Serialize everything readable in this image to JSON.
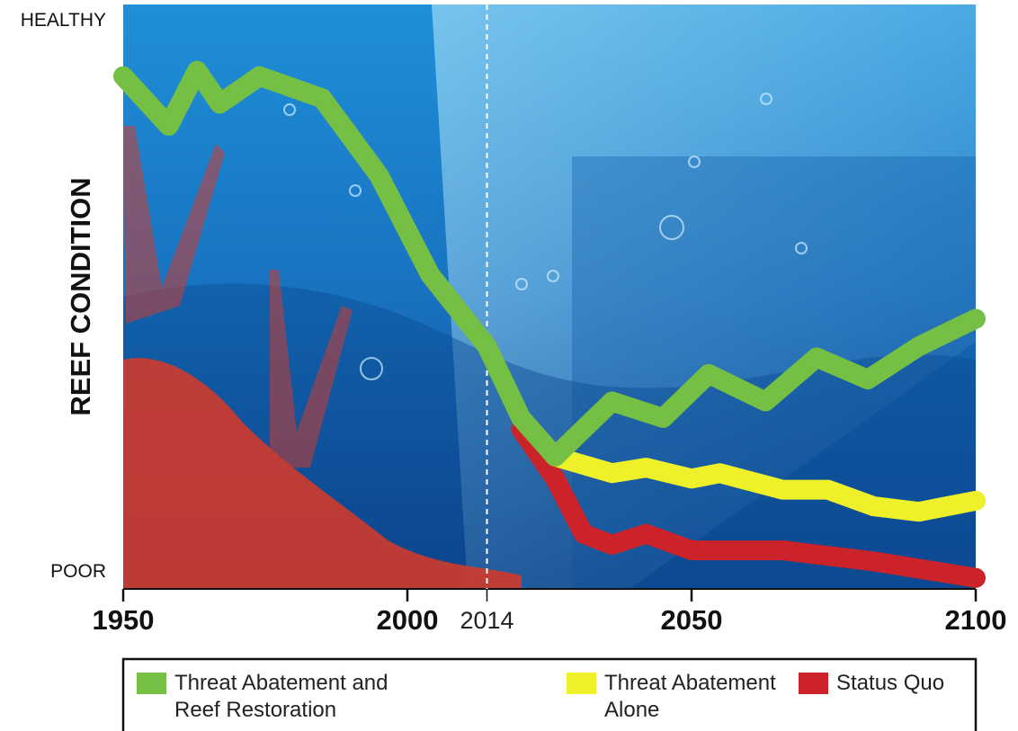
{
  "chart_data": {
    "type": "line",
    "y_label": "REEF CONDITION",
    "ylim": [
      -3,
      103
    ],
    "yticks": [
      {
        "value": 0,
        "label": "POOR"
      },
      {
        "value": 100,
        "label": "HEALTHY"
      }
    ],
    "xlim": [
      1950,
      2100
    ],
    "xticks": [
      1950,
      2000,
      2050,
      2100
    ],
    "reference_x": 2014,
    "series": [
      {
        "name": "Status Quo",
        "color": "#cc2229",
        "x": [
          2020,
          2026,
          2031,
          2036,
          2042,
          2050,
          2066,
          2082,
          2100
        ],
        "values": [
          26,
          17,
          7,
          5,
          7,
          4,
          4,
          2,
          -1
        ]
      },
      {
        "name": "Threat Abatement Alone",
        "color": "#eef02a",
        "x": [
          2026,
          2036,
          2042,
          2050,
          2055,
          2066,
          2074,
          2082,
          2090,
          2100
        ],
        "values": [
          21,
          18,
          19,
          17,
          18,
          15,
          15,
          12,
          11,
          13
        ]
      },
      {
        "name": "Threat Abatement and Reef Restoration",
        "color": "#74bf44",
        "x": [
          1950,
          1958,
          1963,
          1967,
          1974,
          1985,
          1995,
          2004,
          2014,
          2020,
          2026,
          2036,
          2045,
          2053,
          2063,
          2072,
          2081,
          2090,
          2100
        ],
        "values": [
          90,
          81,
          91,
          85,
          90,
          86,
          72,
          54,
          41,
          28,
          21,
          31,
          28,
          36,
          31,
          39,
          35,
          41,
          46
        ]
      }
    ],
    "legend_order": [
      2,
      1,
      0
    ]
  }
}
